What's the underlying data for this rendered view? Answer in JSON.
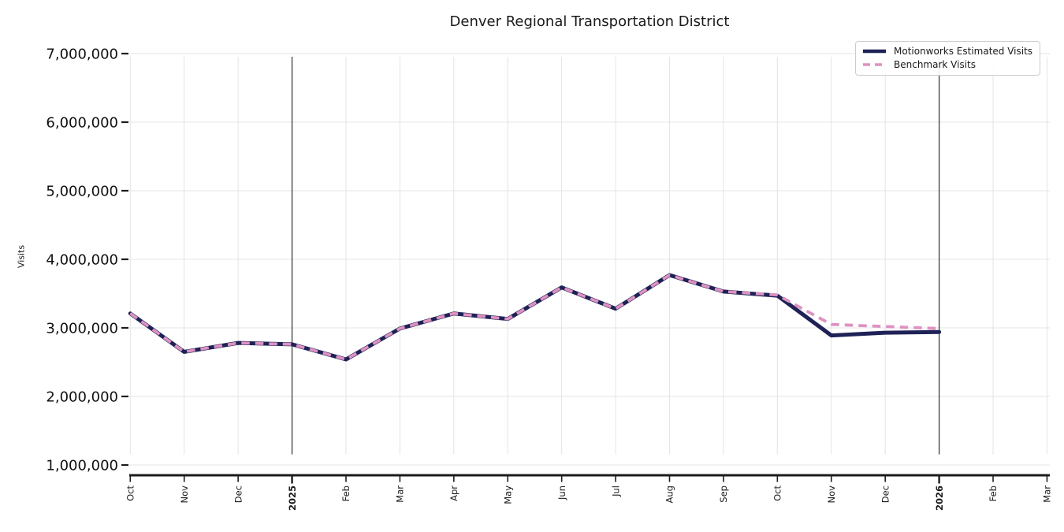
{
  "title": "Denver Regional Transportation District",
  "ylabel": "Visits",
  "legend": {
    "items": [
      {
        "label": "Motionworks Estimated Visits",
        "color": "#1e2256",
        "style": "solid"
      },
      {
        "label": "Benchmark Visits",
        "color": "#de92c1",
        "style": "dashed"
      }
    ]
  },
  "colors": {
    "motionworks_line": "#1e2256",
    "benchmark_line": "#de92c1",
    "gridline": "#e4e4e4",
    "year_boundary_line": "#3d3d3d",
    "axis": "#1c1c1c",
    "text": "#1a1a1a"
  },
  "chart_data": {
    "type": "line",
    "title": "Denver Regional Transportation District",
    "xlabel": "",
    "ylabel": "Visits",
    "x_tick_labels": [
      "Oct",
      "Nov",
      "Dec",
      "2025",
      "Feb",
      "Mar",
      "Apr",
      "May",
      "Jun",
      "Jul",
      "Aug",
      "Sep",
      "Oct",
      "Nov",
      "Dec",
      "2026",
      "Feb",
      "Mar"
    ],
    "year_tick_indices": [
      3,
      15
    ],
    "y_ticks": [
      1000000,
      2000000,
      3000000,
      4000000,
      5000000,
      6000000,
      7000000
    ],
    "ylim": [
      850000,
      7150000
    ],
    "grid": true,
    "legend_position": "upper right",
    "series": [
      {
        "name": "Motionworks Estimated Visits",
        "color": "#1e2256",
        "style": "solid",
        "values": [
          3210000,
          2650000,
          2780000,
          2760000,
          2540000,
          2990000,
          3210000,
          3130000,
          3590000,
          3280000,
          3770000,
          3530000,
          3470000,
          2890000,
          2930000,
          2940000
        ]
      },
      {
        "name": "Benchmark Visits",
        "color": "#de92c1",
        "style": "dashed",
        "values": [
          3210000,
          2650000,
          2780000,
          2760000,
          2540000,
          2990000,
          3210000,
          3130000,
          3590000,
          3280000,
          3770000,
          3530000,
          3480000,
          3050000,
          3020000,
          2990000
        ]
      }
    ]
  }
}
